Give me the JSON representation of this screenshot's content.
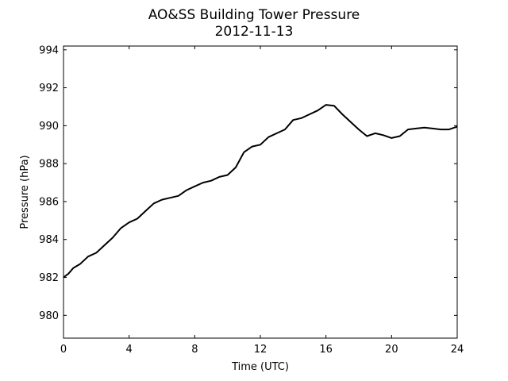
{
  "chart_data": {
    "type": "line",
    "title": "AO&SS Building Tower Pressure",
    "subtitle": "2012-11-13",
    "xlabel": "Time (UTC)",
    "ylabel": "Pressure (hPa)",
    "xlim": [
      0,
      24
    ],
    "ylim": [
      978.8,
      994.2
    ],
    "xticks": [
      0,
      4,
      8,
      12,
      16,
      20,
      24
    ],
    "yticks": [
      980,
      982,
      984,
      986,
      988,
      990,
      992,
      994
    ],
    "grid": false,
    "series": [
      {
        "color": "#000000",
        "x": [
          0,
          0.3,
          0.6,
          1,
          1.5,
          2,
          2.5,
          3,
          3.5,
          4,
          4.5,
          5,
          5.5,
          6,
          6.5,
          7,
          7.5,
          8,
          8.5,
          9,
          9.5,
          10,
          10.5,
          11,
          11.5,
          12,
          12.5,
          13,
          13.5,
          14,
          14.5,
          15,
          15.5,
          16,
          16.5,
          17,
          17.5,
          18,
          18.5,
          19,
          19.5,
          20,
          20.5,
          21,
          21.5,
          22,
          22.5,
          23,
          23.5,
          24
        ],
        "y": [
          982.0,
          982.2,
          982.5,
          982.7,
          983.1,
          983.3,
          983.7,
          984.1,
          984.6,
          984.9,
          985.1,
          985.5,
          985.9,
          986.1,
          986.2,
          986.3,
          986.6,
          986.8,
          987.0,
          987.1,
          987.3,
          987.4,
          987.8,
          988.6,
          988.9,
          989.0,
          989.4,
          989.6,
          989.8,
          990.3,
          990.4,
          990.6,
          990.8,
          991.1,
          991.05,
          990.6,
          990.2,
          989.8,
          989.45,
          989.6,
          989.5,
          989.35,
          989.45,
          989.8,
          989.85,
          989.9,
          989.85,
          989.8,
          989.8,
          989.95
        ]
      }
    ]
  }
}
